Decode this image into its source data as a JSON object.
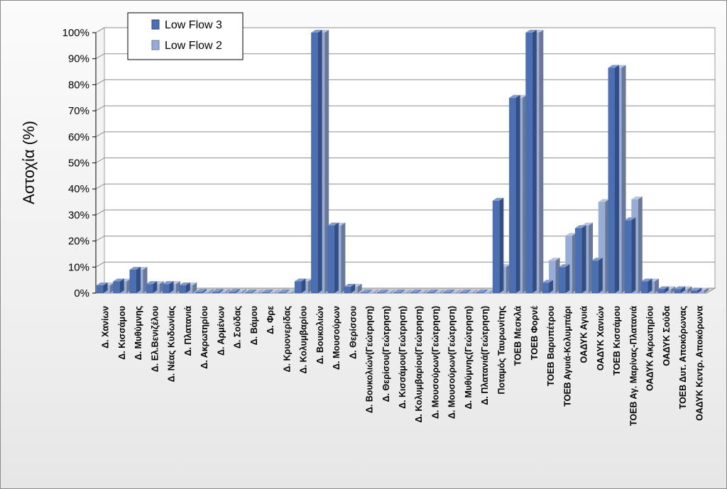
{
  "chart_data": {
    "type": "bar",
    "ylabel": "Αστοχία (%)",
    "ylim": [
      0,
      100
    ],
    "yticks": [
      "0%",
      "10%",
      "20%",
      "30%",
      "40%",
      "50%",
      "60%",
      "70%",
      "80%",
      "90%",
      "100%"
    ],
    "legend_position": "top-left",
    "grid": true,
    "categories": [
      "Δ. Χανίων",
      "Δ. Κισσάμου",
      "Δ. Μυθύμνης",
      "Δ. Ελ.Βενιζέλου",
      "Δ. Νέας Κυδωνίας",
      "Δ. Πλατανιά",
      "Δ. Ακρωτηρίου",
      "Δ. Αρμένων",
      "Δ. Σούδας",
      "Δ. Βάμου",
      "Δ. Φρε",
      "Δ. Κρυονερίδας",
      "Δ. Κολυμβαρίου",
      "Δ. Βουκολιών",
      "Δ. Μουσούρων",
      "Δ. Θερίσσου",
      "Δ. Βουκολιών(Γεώτρηση)",
      "Δ. Θερίσου(Γεώτρηση)",
      "Δ. Κισσάμου(Γεώτρηση)",
      "Δ. Κολυμβαρίου(Γεώτρηση)",
      "Δ. Μουσούρων(Γεώτρηση)",
      "Δ. Μουσούρων(Γεώτρηση)",
      "Δ. Μυθύμνης(Γεώτρηση)",
      "Δ. Πλατανιά(Γεώτρηση)",
      "Ποταμός Ταυρωνίτης",
      "ΤΟΕΒ Μεσκλά",
      "ΤΟΕΒ Φορνέ",
      "ΤΟΕΒ Βαρυπέτρου",
      "ΤΟΕΒ Αγυιά-Κολυμπάρι",
      "ΟΑΔΥΚ Αγυιά",
      "ΟΑΔΥΚ Χανιών",
      "ΤΟΕΒ Κισσάμου",
      "ΤΟΕΒ Αγ. Μαρίνας-Πλατανιά",
      "ΟΑΔΥΚ Ακρωτηρίου",
      "ΟΑΔΥΚ Σούδα",
      "ΤΟΕΒ Δυτ. Αποκόρωνας",
      "ΟΑΔΥΚ Κεντρ. Αποκόρωνα"
    ],
    "series": [
      {
        "name": "Low Flow 3",
        "color": "#4a6fb5",
        "values": [
          3,
          4.5,
          9,
          3.5,
          3.5,
          3,
          0.5,
          0.5,
          0.5,
          0.3,
          0.3,
          0.3,
          4.5,
          100,
          26,
          2.5,
          0.3,
          0.3,
          0.3,
          0.3,
          0.3,
          0.3,
          0.3,
          0.3,
          35.5,
          75,
          100,
          4,
          10,
          25,
          12.5,
          86.5,
          28,
          4.5,
          1.5,
          1.5,
          1
        ]
      },
      {
        "name": "Low Flow 2",
        "color": "#98acd8",
        "values": [
          3,
          4.5,
          9,
          3.5,
          3.5,
          3,
          0.5,
          0.5,
          0.5,
          0.3,
          0.3,
          0.3,
          4.5,
          100,
          26,
          2.5,
          0.3,
          0.3,
          0.3,
          0.3,
          0.3,
          0.3,
          0.3,
          0.3,
          10,
          75,
          100,
          12.5,
          22,
          26,
          35,
          86.5,
          36,
          4.5,
          1.5,
          1.5,
          1
        ]
      }
    ]
  }
}
